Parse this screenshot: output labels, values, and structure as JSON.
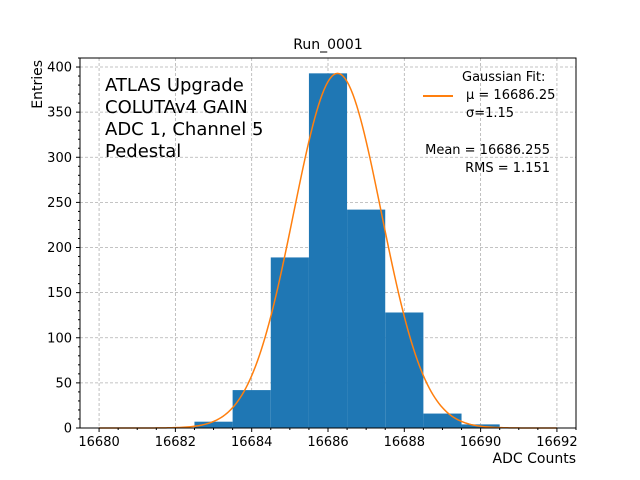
{
  "chart_data": {
    "type": "bar",
    "title": "Run_0001",
    "xlabel": "ADC Counts",
    "ylabel": "Entries",
    "xlim": [
      16679.5,
      16692.5
    ],
    "ylim": [
      0,
      410
    ],
    "xticks": [
      16680,
      16682,
      16684,
      16686,
      16688,
      16690,
      16692
    ],
    "yticks": [
      0,
      50,
      100,
      150,
      200,
      250,
      300,
      350,
      400
    ],
    "grid": true,
    "bar_color": "#1f77b4",
    "fit_color": "#ff7f0e",
    "bins": [
      {
        "x0": 16682.5,
        "x1": 16683.5,
        "count": 7
      },
      {
        "x0": 16683.5,
        "x1": 16684.5,
        "count": 42
      },
      {
        "x0": 16684.5,
        "x1": 16685.5,
        "count": 189
      },
      {
        "x0": 16685.5,
        "x1": 16686.5,
        "count": 393
      },
      {
        "x0": 16686.5,
        "x1": 16687.5,
        "count": 242
      },
      {
        "x0": 16687.5,
        "x1": 16688.5,
        "count": 128
      },
      {
        "x0": 16688.5,
        "x1": 16689.5,
        "count": 16
      },
      {
        "x0": 16689.5,
        "x1": 16690.5,
        "count": 4
      }
    ],
    "fit": {
      "mu": 16686.25,
      "sigma": 1.15,
      "peak": 393,
      "x_range": [
        16680,
        16692
      ]
    },
    "annotation_lines": [
      "ATLAS Upgrade",
      "COLUTAv4 GAIN",
      "ADC 1, Channel 5",
      "Pedestal"
    ],
    "legend": {
      "title": "Gaussian Fit:",
      "line1": "μ = 16686.25",
      "line2": "σ=1.15",
      "placement": "top-right"
    },
    "stats": {
      "mean": "Mean = 16686.255",
      "rms": "RMS = 1.151"
    }
  }
}
